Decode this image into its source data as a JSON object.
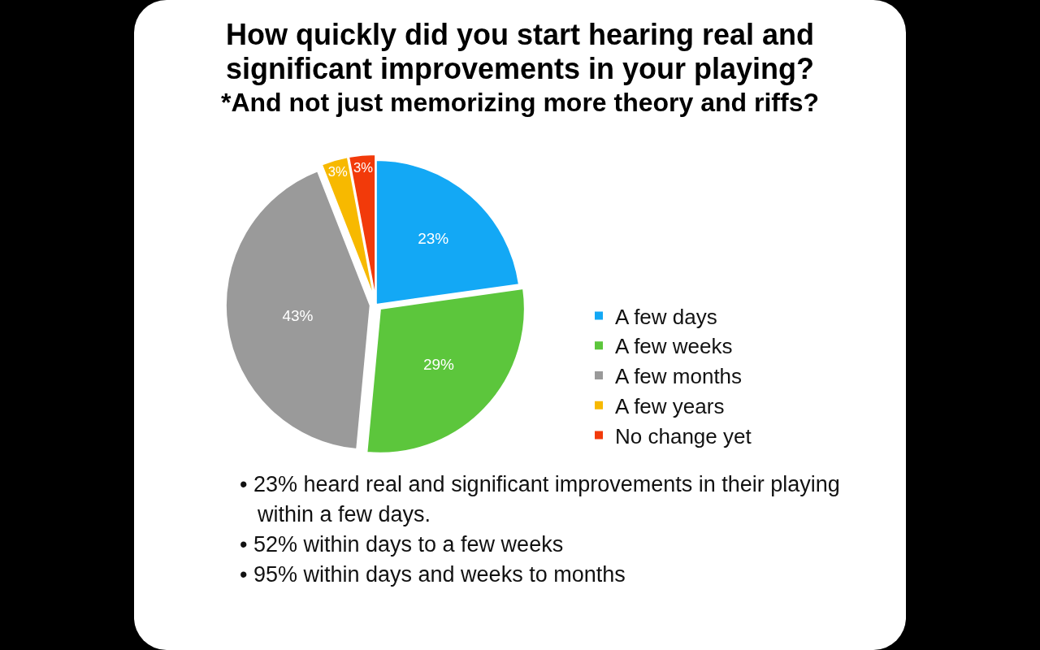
{
  "chart_data": {
    "type": "pie",
    "title": "How quickly did you start hearing real and significant improvements in your playing?",
    "subtitle": "*And not just memorizing more theory and riffs?",
    "categories": [
      "A few days",
      "A few weeks",
      "A few months",
      "A few years",
      "No change yet"
    ],
    "values": [
      23,
      29,
      43,
      3,
      3
    ],
    "colors": [
      "#13a8f5",
      "#5cc63c",
      "#9a9a9a",
      "#f7b900",
      "#f23a0a"
    ],
    "value_labels": [
      "23%",
      "29%",
      "43%",
      "3%",
      "3%"
    ],
    "legend": "bottom right",
    "annotations": [
      "• 23% heard real and significant improvements in their playing within a few days.",
      "• 52% within days to a few weeks",
      "• 95% within days and weeks to months"
    ]
  }
}
